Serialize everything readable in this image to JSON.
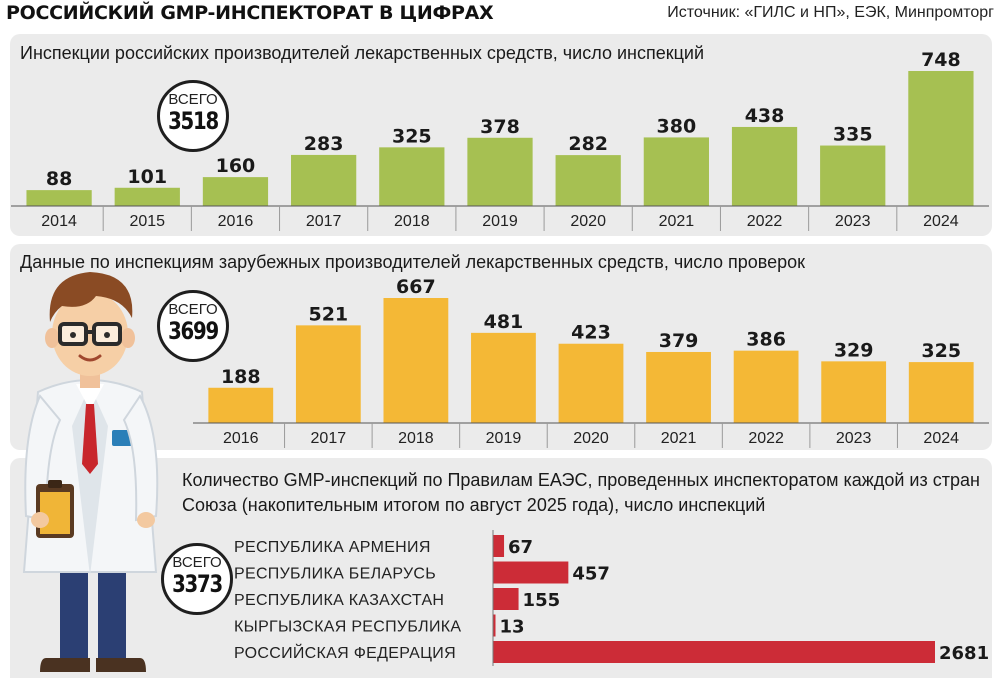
{
  "header": {
    "title": "РОССИЙСКИЙ GMP-ИНСПЕКТОРАТ В ЦИФРАХ",
    "source": "Источник: «ГИЛС и НП», ЕЭК, Минпромторг"
  },
  "colors": {
    "green": "#a6c052",
    "orange": "#f4b836",
    "red": "#cc2c37",
    "panel": "#ebebeb"
  },
  "chart_data": [
    {
      "type": "bar",
      "title": "Инспекции российских производителей лекарственных средств, число инспекций",
      "categories": [
        "2014",
        "2015",
        "2016",
        "2017",
        "2018",
        "2019",
        "2020",
        "2021",
        "2022",
        "2023",
        "2024"
      ],
      "values": [
        88,
        101,
        160,
        283,
        325,
        378,
        282,
        380,
        438,
        335,
        748
      ],
      "total_label": "ВСЕГО",
      "total_value": "3518",
      "color": "#a6c052"
    },
    {
      "type": "bar",
      "title": "Данные по инспекциям зарубежных производителей лекарственных средств, число проверок",
      "categories": [
        "2016",
        "2017",
        "2018",
        "2019",
        "2020",
        "2021",
        "2022",
        "2023",
        "2024"
      ],
      "values": [
        188,
        521,
        667,
        481,
        423,
        379,
        386,
        329,
        325
      ],
      "total_label": "ВСЕГО",
      "total_value": "3699",
      "color": "#f4b836"
    },
    {
      "type": "bar",
      "orientation": "horizontal",
      "title": "Количество GMP-инспекций по Правилам ЕАЭС, проведенных инспекторатом каждой из стран Союза (накопительным итогом по август 2025 года), число инспекций",
      "categories": [
        "РЕСПУБЛИКА АРМЕНИЯ",
        "РЕСПУБЛИКА БЕЛАРУСЬ",
        "РЕСПУБЛИКА КАЗАХСТАН",
        "КЫРГЫЗСКАЯ РЕСПУБЛИКА",
        "РОССИЙСКАЯ ФЕДЕРАЦИЯ"
      ],
      "values": [
        67,
        457,
        155,
        13,
        2681
      ],
      "total_label": "ВСЕГО",
      "total_value": "3373",
      "color": "#cc2c37"
    }
  ]
}
